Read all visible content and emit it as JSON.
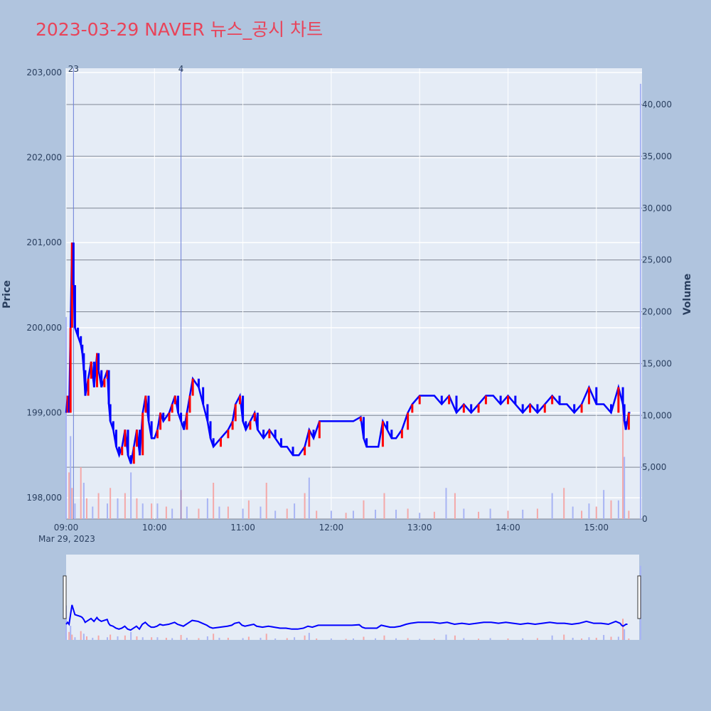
{
  "title": "2023-03-29 NAVER 뉴스_공시 차트",
  "colors": {
    "background": "#B0C4DE",
    "plot_bg": "#E5ECF6",
    "up": "#FF0000",
    "down": "#0000FF",
    "title": "#E8445A",
    "vol_up": "#F4A8A8",
    "vol_down": "#A8B4F4"
  },
  "chart_data": {
    "type": "line",
    "title": "2023-03-29 NAVER 뉴스_공시 차트",
    "xlabel": "",
    "date_label": "Mar 29, 2023",
    "x_ticks": [
      "09:00",
      "10:00",
      "11:00",
      "12:00",
      "13:00",
      "14:00",
      "15:00"
    ],
    "price_axis": {
      "label": "Price",
      "ylim": [
        197750,
        203050
      ],
      "ticks": [
        198000,
        199000,
        200000,
        201000,
        202000,
        203000
      ],
      "tick_labels": [
        "198,000",
        "199,000",
        "200,000",
        "201,000",
        "202,000",
        "203,000"
      ]
    },
    "volume_axis": {
      "label": "Volume",
      "ylim": [
        0,
        43500
      ],
      "ticks": [
        0,
        5000,
        10000,
        15000,
        20000,
        25000,
        30000,
        35000,
        40000
      ],
      "tick_labels": [
        "0",
        "5,000",
        "10,000",
        "15,000",
        "20,000",
        "25,000",
        "30,000",
        "35,000",
        "40,000"
      ]
    },
    "news_markers": [
      {
        "time": "09:05",
        "label": "23"
      },
      {
        "time": "10:18",
        "label": "4"
      }
    ],
    "price_series": [
      [
        "09:00",
        199000
      ],
      [
        "09:01",
        199200
      ],
      [
        "09:02",
        199000
      ],
      [
        "09:03",
        200000
      ],
      [
        "09:04",
        201000
      ],
      [
        "09:05",
        200500
      ],
      [
        "09:06",
        200000
      ],
      [
        "09:08",
        199900
      ],
      [
        "09:10",
        199800
      ],
      [
        "09:11",
        199700
      ],
      [
        "09:12",
        199500
      ],
      [
        "09:13",
        199200
      ],
      [
        "09:15",
        199400
      ],
      [
        "09:17",
        199600
      ],
      [
        "09:19",
        199300
      ],
      [
        "09:21",
        199700
      ],
      [
        "09:22",
        199500
      ],
      [
        "09:24",
        199300
      ],
      [
        "09:26",
        199400
      ],
      [
        "09:28",
        199500
      ],
      [
        "09:29",
        199100
      ],
      [
        "09:30",
        198900
      ],
      [
        "09:32",
        198800
      ],
      [
        "09:34",
        198600
      ],
      [
        "09:36",
        198500
      ],
      [
        "09:38",
        198600
      ],
      [
        "09:40",
        198800
      ],
      [
        "09:42",
        198500
      ],
      [
        "09:44",
        198400
      ],
      [
        "09:46",
        198600
      ],
      [
        "09:48",
        198800
      ],
      [
        "09:50",
        198500
      ],
      [
        "09:52",
        199000
      ],
      [
        "09:54",
        199200
      ],
      [
        "09:56",
        198900
      ],
      [
        "09:58",
        198700
      ],
      [
        "10:00",
        198700
      ],
      [
        "10:02",
        198800
      ],
      [
        "10:04",
        199000
      ],
      [
        "10:06",
        198900
      ],
      [
        "10:10",
        199000
      ],
      [
        "10:12",
        199100
      ],
      [
        "10:14",
        199200
      ],
      [
        "10:16",
        199000
      ],
      [
        "10:18",
        198900
      ],
      [
        "10:20",
        198800
      ],
      [
        "10:22",
        199000
      ],
      [
        "10:24",
        199200
      ],
      [
        "10:26",
        199400
      ],
      [
        "10:30",
        199300
      ],
      [
        "10:33",
        199100
      ],
      [
        "10:36",
        198900
      ],
      [
        "10:38",
        198700
      ],
      [
        "10:40",
        198600
      ],
      [
        "10:45",
        198700
      ],
      [
        "10:50",
        198800
      ],
      [
        "10:53",
        198900
      ],
      [
        "10:55",
        199100
      ],
      [
        "10:58",
        199200
      ],
      [
        "11:00",
        198900
      ],
      [
        "11:02",
        198800
      ],
      [
        "11:05",
        198900
      ],
      [
        "11:08",
        199000
      ],
      [
        "11:10",
        198800
      ],
      [
        "11:14",
        198700
      ],
      [
        "11:18",
        198800
      ],
      [
        "11:22",
        198700
      ],
      [
        "11:26",
        198600
      ],
      [
        "11:30",
        198600
      ],
      [
        "11:34",
        198500
      ],
      [
        "11:38",
        198500
      ],
      [
        "11:42",
        198600
      ],
      [
        "11:45",
        198800
      ],
      [
        "11:48",
        198700
      ],
      [
        "11:52",
        198900
      ],
      [
        "11:56",
        198900
      ],
      [
        "12:00",
        198900
      ],
      [
        "12:05",
        198900
      ],
      [
        "12:10",
        198900
      ],
      [
        "12:15",
        198900
      ],
      [
        "12:20",
        198950
      ],
      [
        "12:22",
        198700
      ],
      [
        "12:24",
        198600
      ],
      [
        "12:28",
        198600
      ],
      [
        "12:32",
        198600
      ],
      [
        "12:35",
        198900
      ],
      [
        "12:38",
        198800
      ],
      [
        "12:41",
        198700
      ],
      [
        "12:44",
        198700
      ],
      [
        "12:48",
        198800
      ],
      [
        "12:52",
        199000
      ],
      [
        "12:55",
        199100
      ],
      [
        "13:00",
        199200
      ],
      [
        "13:05",
        199200
      ],
      [
        "13:10",
        199200
      ],
      [
        "13:15",
        199100
      ],
      [
        "13:20",
        199200
      ],
      [
        "13:25",
        199000
      ],
      [
        "13:30",
        199100
      ],
      [
        "13:35",
        199000
      ],
      [
        "13:40",
        199100
      ],
      [
        "13:45",
        199200
      ],
      [
        "13:50",
        199200
      ],
      [
        "13:55",
        199100
      ],
      [
        "14:00",
        199200
      ],
      [
        "14:05",
        199100
      ],
      [
        "14:10",
        199000
      ],
      [
        "14:15",
        199100
      ],
      [
        "14:20",
        199000
      ],
      [
        "14:25",
        199100
      ],
      [
        "14:30",
        199200
      ],
      [
        "14:35",
        199100
      ],
      [
        "14:40",
        199100
      ],
      [
        "14:45",
        199000
      ],
      [
        "14:50",
        199100
      ],
      [
        "14:55",
        199300
      ],
      [
        "15:00",
        199100
      ],
      [
        "15:05",
        199100
      ],
      [
        "15:10",
        199000
      ],
      [
        "15:15",
        199300
      ],
      [
        "15:18",
        199100
      ],
      [
        "15:19",
        198900
      ],
      [
        "15:20",
        198800
      ],
      [
        "15:22",
        199000
      ],
      [
        "15:23",
        199000
      ]
    ],
    "volume_bars": [
      [
        "09:00",
        19500
      ],
      [
        "09:02",
        4500
      ],
      [
        "09:03",
        8000
      ],
      [
        "09:04",
        3000
      ],
      [
        "09:06",
        1500
      ],
      [
        "09:10",
        5000
      ],
      [
        "09:12",
        3500
      ],
      [
        "09:14",
        2000
      ],
      [
        "09:18",
        1200
      ],
      [
        "09:22",
        2500
      ],
      [
        "09:28",
        1500
      ],
      [
        "09:30",
        3000
      ],
      [
        "09:35",
        2000
      ],
      [
        "09:40",
        2500
      ],
      [
        "09:44",
        4500
      ],
      [
        "09:48",
        2000
      ],
      [
        "09:52",
        1500
      ],
      [
        "09:58",
        1500
      ],
      [
        "10:02",
        1500
      ],
      [
        "10:08",
        1200
      ],
      [
        "10:12",
        1000
      ],
      [
        "10:18",
        2800
      ],
      [
        "10:22",
        1200
      ],
      [
        "10:30",
        1000
      ],
      [
        "10:36",
        2000
      ],
      [
        "10:40",
        3500
      ],
      [
        "10:44",
        1200
      ],
      [
        "10:50",
        1200
      ],
      [
        "11:00",
        1000
      ],
      [
        "11:04",
        1800
      ],
      [
        "11:12",
        1200
      ],
      [
        "11:16",
        3500
      ],
      [
        "11:22",
        800
      ],
      [
        "11:30",
        1000
      ],
      [
        "11:35",
        1500
      ],
      [
        "11:42",
        2500
      ],
      [
        "11:45",
        4000
      ],
      [
        "11:50",
        800
      ],
      [
        "12:00",
        800
      ],
      [
        "12:10",
        600
      ],
      [
        "12:15",
        800
      ],
      [
        "12:22",
        1800
      ],
      [
        "12:30",
        900
      ],
      [
        "12:36",
        2500
      ],
      [
        "12:44",
        900
      ],
      [
        "12:52",
        1000
      ],
      [
        "13:00",
        600
      ],
      [
        "13:10",
        700
      ],
      [
        "13:18",
        3000
      ],
      [
        "13:24",
        2500
      ],
      [
        "13:30",
        1000
      ],
      [
        "13:40",
        700
      ],
      [
        "13:48",
        1000
      ],
      [
        "14:00",
        800
      ],
      [
        "14:10",
        900
      ],
      [
        "14:20",
        1000
      ],
      [
        "14:30",
        2500
      ],
      [
        "14:38",
        3000
      ],
      [
        "14:44",
        1200
      ],
      [
        "14:50",
        800
      ],
      [
        "14:55",
        1500
      ],
      [
        "15:00",
        1200
      ],
      [
        "15:05",
        2800
      ],
      [
        "15:10",
        1800
      ],
      [
        "15:15",
        1800
      ],
      [
        "15:18",
        12000
      ],
      [
        "15:19",
        6000
      ],
      [
        "15:22",
        800
      ],
      [
        "15:30",
        42000
      ]
    ],
    "navigator_visible": true
  }
}
